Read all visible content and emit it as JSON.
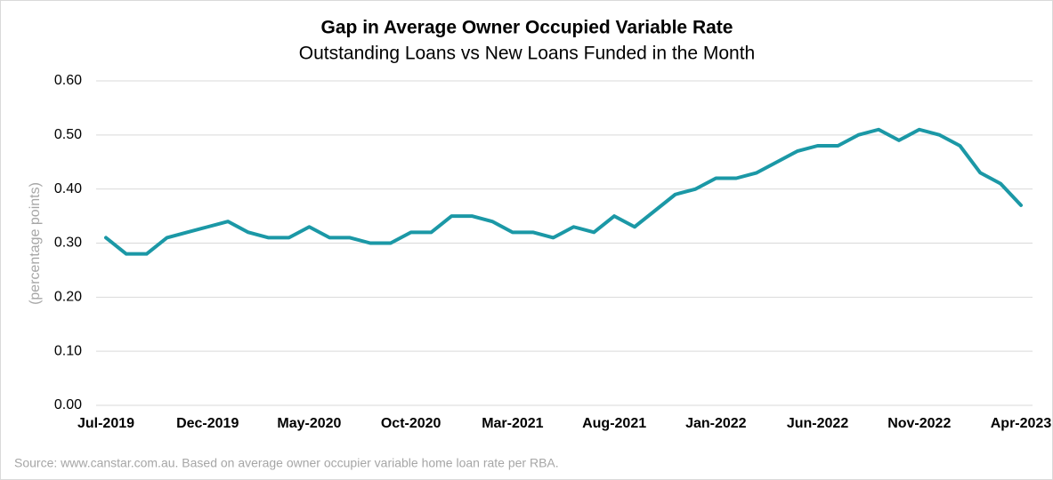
{
  "chart_data": {
    "type": "line",
    "title": "Gap in Average Owner Occupied Variable Rate",
    "subtitle": "Outstanding Loans vs New Loans Funded in the Month",
    "y_label": "(percentage points)",
    "source": "Source: www.canstar.com.au.  Based on average owner occupier variable home loan rate per RBA.",
    "categories": [
      "Jul-2019",
      null,
      null,
      null,
      null,
      "Dec-2019",
      null,
      null,
      null,
      null,
      "May-2020",
      null,
      null,
      null,
      null,
      "Oct-2020",
      null,
      null,
      null,
      null,
      "Mar-2021",
      null,
      null,
      null,
      null,
      "Aug-2021",
      null,
      null,
      null,
      null,
      "Jan-2022",
      null,
      null,
      null,
      null,
      "Jun-2022",
      null,
      null,
      null,
      null,
      "Nov-2022",
      null,
      null,
      null,
      null,
      "Apr-2023"
    ],
    "series": [
      {
        "name": "Gap",
        "color": "#1b98a6",
        "values": [
          0.31,
          0.28,
          0.28,
          0.31,
          0.32,
          0.33,
          0.34,
          0.32,
          0.31,
          0.31,
          0.33,
          0.31,
          0.31,
          0.3,
          0.3,
          0.32,
          0.32,
          0.35,
          0.35,
          0.34,
          0.32,
          0.32,
          0.31,
          0.33,
          0.32,
          0.35,
          0.33,
          0.36,
          0.39,
          0.4,
          0.42,
          0.42,
          0.43,
          0.45,
          0.47,
          0.48,
          0.48,
          0.5,
          0.51,
          0.49,
          0.51,
          0.5,
          0.48,
          0.43,
          0.41,
          0.37
        ]
      }
    ],
    "ylim": [
      0,
      0.6
    ],
    "yticks": [
      {
        "value": 0,
        "label": "0.00"
      },
      {
        "value": 0.1,
        "label": "0.10"
      },
      {
        "value": 0.2,
        "label": "0.20"
      },
      {
        "value": 0.3,
        "label": "0.30"
      },
      {
        "value": 0.4,
        "label": "0.40"
      },
      {
        "value": 0.5,
        "label": "0.50"
      },
      {
        "value": 0.6,
        "label": "0.60"
      }
    ],
    "grid": true
  }
}
